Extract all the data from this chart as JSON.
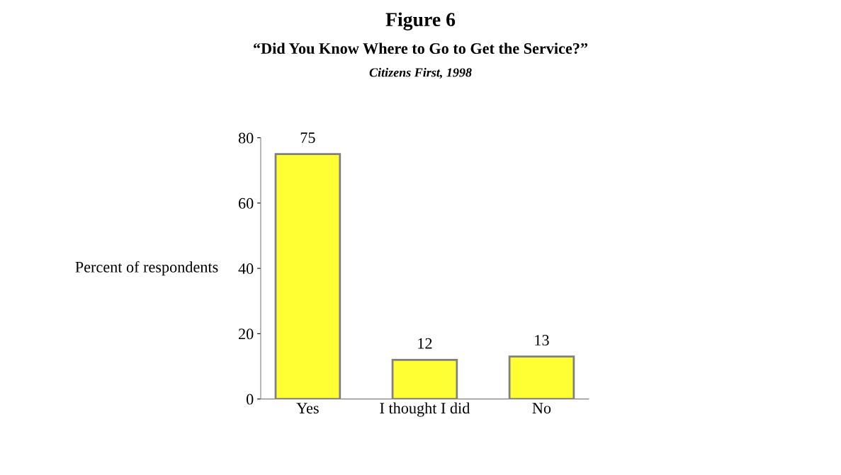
{
  "chart_data": {
    "type": "bar",
    "title": "Figure 6",
    "subtitle": "“Did You Know Where to Go to Get the Service?”",
    "annotations": [
      "Citizens First, 1998"
    ],
    "ylabel": "Percent of respondents",
    "categories": [
      "Yes",
      "I thought I did",
      "No"
    ],
    "values": [
      75,
      12,
      13
    ],
    "color": "#ffff33",
    "ylim": [
      0,
      80
    ],
    "yticks": [
      0,
      20,
      40,
      60,
      80
    ],
    "grid": false,
    "data_labels": true
  }
}
